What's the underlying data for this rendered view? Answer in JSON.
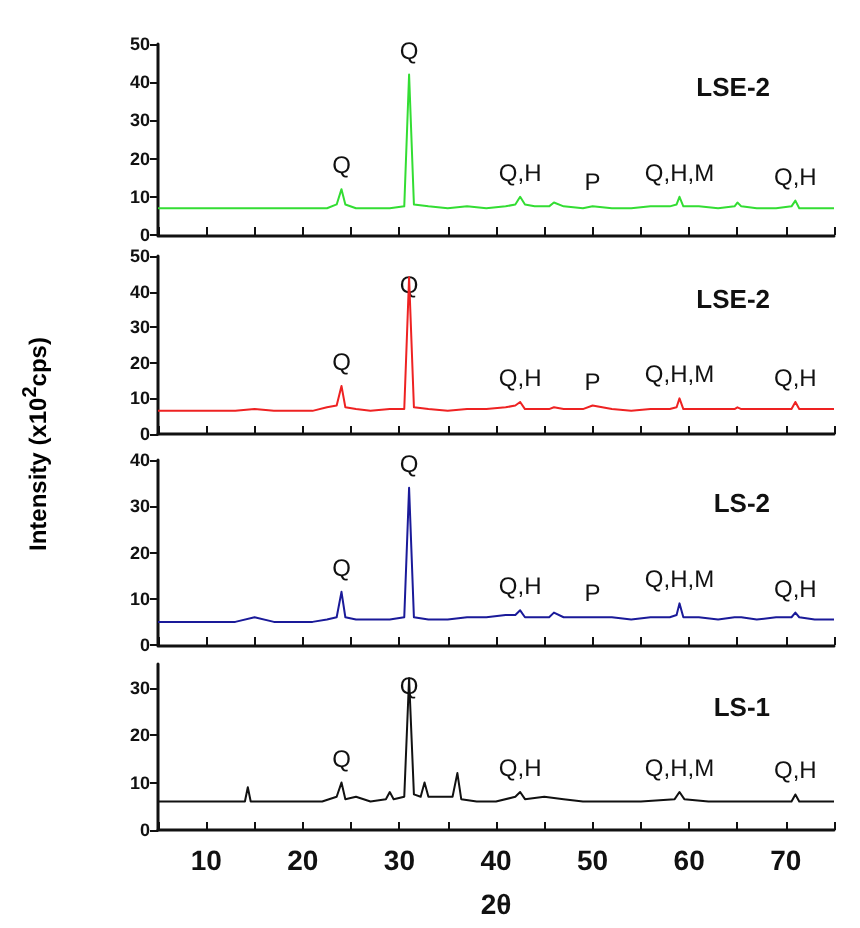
{
  "chart_data": [
    {
      "type": "line",
      "title": "LSE-2",
      "xlim": [
        5,
        75
      ],
      "xticks": [
        {
          "value": 5,
          "label": null
        },
        {
          "value": 10,
          "label": null
        },
        {
          "value": 15,
          "label": null
        },
        {
          "value": 20,
          "label": null
        },
        {
          "value": 25,
          "label": null
        },
        {
          "value": 30,
          "label": null
        },
        {
          "value": 35,
          "label": null
        },
        {
          "value": 40,
          "label": null
        },
        {
          "value": 45,
          "label": null
        },
        {
          "value": 50,
          "label": null
        },
        {
          "value": 55,
          "label": null
        },
        {
          "value": 60,
          "label": null
        },
        {
          "value": 65,
          "label": null
        },
        {
          "value": 70,
          "label": null
        },
        {
          "value": 75,
          "label": null
        }
      ],
      "ylim": [
        0,
        50
      ],
      "yticks": [
        0,
        10,
        20,
        30,
        40,
        50
      ],
      "tick_labels": "y",
      "marker": "none",
      "x": [
        5,
        7,
        9,
        11,
        13,
        15,
        17,
        19,
        21,
        22.5,
        23.5,
        24,
        24.4,
        25.5,
        27,
        29,
        30.5,
        31,
        31.5,
        33,
        35,
        37,
        39,
        41,
        42,
        42.5,
        43,
        44,
        45.5,
        46,
        47,
        49,
        50,
        52,
        54,
        56,
        58,
        58.7,
        59,
        59.4,
        61,
        63,
        64.7,
        65,
        65.4,
        67,
        69,
        70.6,
        71,
        71.4,
        73,
        75
      ],
      "series": [
        {
          "color": "#33dd33",
          "values": [
            7,
            7,
            7,
            7,
            7,
            7,
            7,
            7,
            7,
            7,
            8,
            12,
            8,
            7,
            7,
            7,
            7.5,
            42,
            8,
            7.5,
            7,
            7.5,
            7,
            7.5,
            8,
            10,
            8,
            7.5,
            7.5,
            8.5,
            7.5,
            7,
            7.5,
            7,
            7,
            7.5,
            7.5,
            8,
            10,
            7.5,
            7.5,
            7,
            7.5,
            8.5,
            7.5,
            7,
            7,
            7.5,
            9,
            7,
            7,
            7
          ]
        }
      ],
      "annotations": [
        {
          "text": "Q",
          "x": 24,
          "y": 12
        },
        {
          "text": "Q",
          "x": 31,
          "y": 42
        },
        {
          "text": "Q,H",
          "x": 42.5,
          "y": 10
        },
        {
          "text": "P",
          "x": 50,
          "y": 7.5
        },
        {
          "text": "Q,H,M",
          "x": 59,
          "y": 10
        },
        {
          "text": "Q,H",
          "x": 71,
          "y": 9
        }
      ]
    },
    {
      "type": "line",
      "title": "LSE-2",
      "ylabel": "Intensity (x10$^{2}$cps)",
      "xlim": [
        5,
        75
      ],
      "xticks": [
        {
          "value": 5,
          "label": null
        },
        {
          "value": 10,
          "label": null
        },
        {
          "value": 15,
          "label": null
        },
        {
          "value": 20,
          "label": null
        },
        {
          "value": 25,
          "label": null
        },
        {
          "value": 30,
          "label": null
        },
        {
          "value": 35,
          "label": null
        },
        {
          "value": 40,
          "label": null
        },
        {
          "value": 45,
          "label": null
        },
        {
          "value": 50,
          "label": null
        },
        {
          "value": 55,
          "label": null
        },
        {
          "value": 60,
          "label": null
        },
        {
          "value": 65,
          "label": null
        },
        {
          "value": 70,
          "label": null
        },
        {
          "value": 75,
          "label": null
        }
      ],
      "ylim": [
        0,
        50
      ],
      "yticks": [
        0,
        10,
        20,
        30,
        40,
        50
      ],
      "tick_labels": "y",
      "marker": "none",
      "x": [
        5,
        7,
        9,
        11,
        13,
        15,
        17,
        19,
        21,
        22.5,
        23.5,
        24,
        24.4,
        25.5,
        27,
        29,
        30.5,
        31,
        31.5,
        33,
        35,
        37,
        39,
        41,
        42,
        42.5,
        43,
        44,
        45.5,
        46,
        47,
        49,
        50,
        52,
        54,
        56,
        58,
        58.7,
        59,
        59.4,
        61,
        63,
        64.7,
        65,
        65.4,
        67,
        69,
        70.6,
        71,
        71.4,
        73,
        75
      ],
      "series": [
        {
          "color": "#ee2222",
          "values": [
            6.5,
            6.5,
            6.5,
            6.5,
            6.5,
            7,
            6.5,
            6.5,
            6.5,
            7.5,
            8,
            13.5,
            7.5,
            7,
            6.5,
            7,
            7,
            44,
            7.5,
            7,
            6.5,
            7,
            7,
            7.5,
            8,
            9,
            7,
            7,
            7,
            7.5,
            7,
            7,
            8,
            7,
            6.5,
            7,
            7,
            7.5,
            10,
            7,
            7,
            7,
            7,
            7.5,
            7,
            7,
            7,
            7,
            9,
            7,
            7,
            7
          ]
        }
      ],
      "annotations": [
        {
          "text": "Q",
          "x": 24,
          "y": 13.5
        },
        {
          "text": "Q",
          "x": 31,
          "y": 44
        },
        {
          "text": "Q,H",
          "x": 42.5,
          "y": 9
        },
        {
          "text": "P",
          "x": 50,
          "y": 8
        },
        {
          "text": "Q,H,M",
          "x": 59,
          "y": 10
        },
        {
          "text": "Q,H",
          "x": 71,
          "y": 9
        }
      ]
    },
    {
      "type": "line",
      "title": "LS-2",
      "xlim": [
        5,
        75
      ],
      "xticks": [
        {
          "value": 5,
          "label": null
        },
        {
          "value": 10,
          "label": null
        },
        {
          "value": 15,
          "label": null
        },
        {
          "value": 20,
          "label": null
        },
        {
          "value": 25,
          "label": null
        },
        {
          "value": 30,
          "label": null
        },
        {
          "value": 35,
          "label": null
        },
        {
          "value": 40,
          "label": null
        },
        {
          "value": 45,
          "label": null
        },
        {
          "value": 50,
          "label": null
        },
        {
          "value": 55,
          "label": null
        },
        {
          "value": 60,
          "label": null
        },
        {
          "value": 65,
          "label": null
        },
        {
          "value": 70,
          "label": null
        },
        {
          "value": 75,
          "label": null
        }
      ],
      "ylim": [
        0,
        40
      ],
      "yticks": [
        0,
        10,
        20,
        30,
        40
      ],
      "tick_labels": "y",
      "marker": "none",
      "x": [
        5,
        7,
        9,
        11,
        13,
        15,
        17,
        19,
        21,
        22.5,
        23.5,
        24,
        24.4,
        25.5,
        27,
        29,
        30.5,
        31,
        31.5,
        33,
        35,
        37,
        39,
        41,
        42,
        42.5,
        43,
        44,
        45.5,
        46,
        47,
        49,
        50,
        52,
        54,
        56,
        58,
        58.7,
        59,
        59.4,
        61,
        63,
        64.7,
        65,
        65.4,
        67,
        69,
        70.6,
        71,
        71.4,
        73,
        75
      ],
      "series": [
        {
          "color": "#1a1a99",
          "values": [
            5,
            5,
            5,
            5,
            5,
            6,
            5,
            5,
            5,
            5.5,
            6,
            11.5,
            6,
            5.5,
            5.5,
            5.5,
            6,
            34,
            6,
            5.5,
            5.5,
            6,
            6,
            6.5,
            6.5,
            7.5,
            6,
            6,
            6,
            7,
            6,
            6,
            6,
            6,
            5.5,
            6,
            6,
            6.5,
            9,
            6,
            6,
            5.5,
            6,
            6,
            6,
            5.5,
            6,
            6,
            7,
            6,
            5.5,
            5.5
          ]
        }
      ],
      "annotations": [
        {
          "text": "Q",
          "x": 24,
          "y": 11.5
        },
        {
          "text": "Q",
          "x": 31,
          "y": 34
        },
        {
          "text": "Q,H",
          "x": 42.5,
          "y": 7.5
        },
        {
          "text": "P",
          "x": 50,
          "y": 6
        },
        {
          "text": "Q,H,M",
          "x": 59,
          "y": 9
        },
        {
          "text": "Q,H",
          "x": 71,
          "y": 7
        }
      ]
    },
    {
      "type": "line",
      "title": "LS-1",
      "xlabel": "2θ",
      "xlim": [
        5,
        75
      ],
      "xticks": [
        {
          "value": 5,
          "label": null
        },
        10,
        {
          "value": 15,
          "label": null
        },
        20,
        {
          "value": 25,
          "label": null
        },
        30,
        {
          "value": 35,
          "label": null
        },
        40,
        {
          "value": 45,
          "label": null
        },
        50,
        {
          "value": 55,
          "label": null
        },
        60,
        {
          "value": 65,
          "label": null
        },
        70,
        {
          "value": 75,
          "label": null
        }
      ],
      "ylim": [
        0,
        35
      ],
      "yticks": [
        0,
        10,
        20,
        30
      ],
      "marker": "none",
      "x": [
        5,
        7,
        9,
        11,
        13,
        14,
        14.3,
        14.6,
        16,
        18,
        20,
        22,
        23.5,
        24,
        24.4,
        25.5,
        27,
        28.6,
        29,
        29.4,
        30.5,
        31,
        31.5,
        32.2,
        32.6,
        33,
        35.5,
        36,
        36.4,
        38,
        40,
        42,
        42.5,
        43,
        45,
        47,
        49,
        52,
        55,
        58.5,
        59,
        59.5,
        62,
        65,
        68,
        70.6,
        71,
        71.4,
        73,
        75
      ],
      "series": [
        {
          "color": "#111111",
          "values": [
            6,
            6,
            6,
            6,
            6,
            6,
            9,
            6,
            6,
            6,
            6,
            6,
            7,
            10,
            6.5,
            7,
            6,
            6.5,
            8,
            6.5,
            7,
            32,
            7.5,
            7,
            10,
            7,
            7,
            12,
            6.5,
            6,
            6,
            7,
            8,
            6.5,
            7,
            6.5,
            6,
            6,
            6,
            6.5,
            8,
            6.5,
            6,
            6,
            6,
            6,
            7.5,
            6,
            6,
            6
          ]
        }
      ],
      "annotations": [
        {
          "text": "Q",
          "x": 24,
          "y": 10
        },
        {
          "text": "Q",
          "x": 31,
          "y": 32
        },
        {
          "text": "Q,H",
          "x": 42.5,
          "y": 8
        },
        {
          "text": "Q,H,M",
          "x": 59,
          "y": 8
        },
        {
          "text": "Q,H",
          "x": 71,
          "y": 7.5
        }
      ]
    }
  ]
}
